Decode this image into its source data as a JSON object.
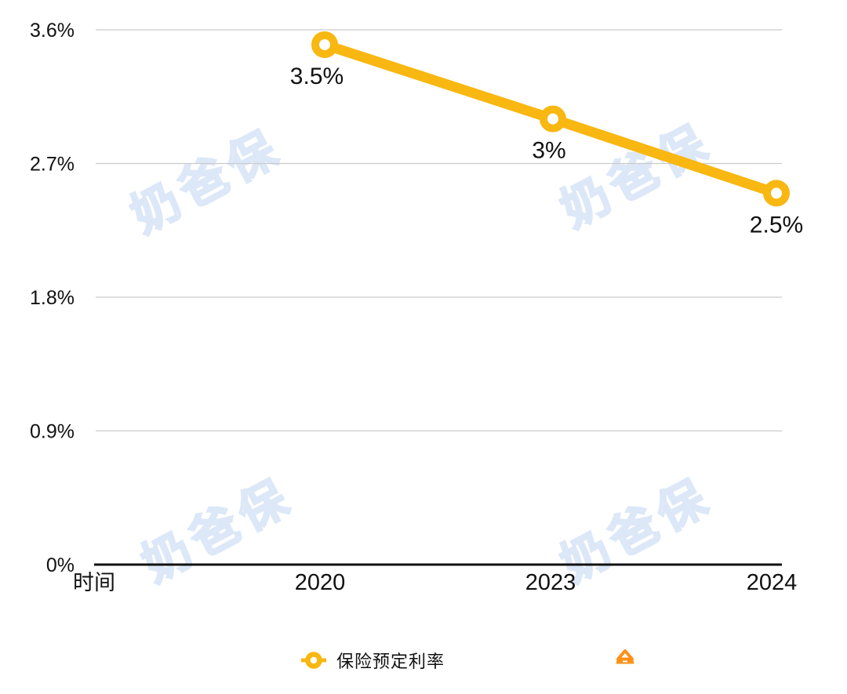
{
  "watermark": {
    "text": "奶爸保",
    "color": "#dce8f8"
  },
  "chart_data": {
    "type": "line",
    "title": "",
    "xlabel": "时间",
    "ylabel": "",
    "categories": [
      "2020",
      "2023",
      "2024"
    ],
    "series": [
      {
        "name": "保险预定利率",
        "values": [
          3.5,
          3.0,
          2.5
        ],
        "point_labels": [
          "3.5%",
          "3%",
          "2.5%"
        ],
        "color": "#F8B711",
        "marker": "donut-circle"
      }
    ],
    "y_ticks": [
      {
        "value": 3.6,
        "label": "3.6%"
      },
      {
        "value": 2.7,
        "label": "2.7%"
      },
      {
        "value": 1.8,
        "label": "1.8%"
      },
      {
        "value": 0.9,
        "label": "0.9%"
      },
      {
        "value": 0.0,
        "label": "0%"
      }
    ],
    "ylim": [
      0,
      3.6
    ],
    "grid": true,
    "legend_position": "bottom"
  },
  "legend": {
    "items": [
      {
        "label": "保险预定利率",
        "marker": "circle-on-line",
        "color": "#F8B711"
      },
      {
        "label": "",
        "marker": "triangle",
        "color": "#FF9015"
      }
    ]
  },
  "colors": {
    "line": "#F8B711",
    "triangle": "#FF9015",
    "grid": "#CBCBCB",
    "axis": "#111111",
    "text": "#111111"
  }
}
